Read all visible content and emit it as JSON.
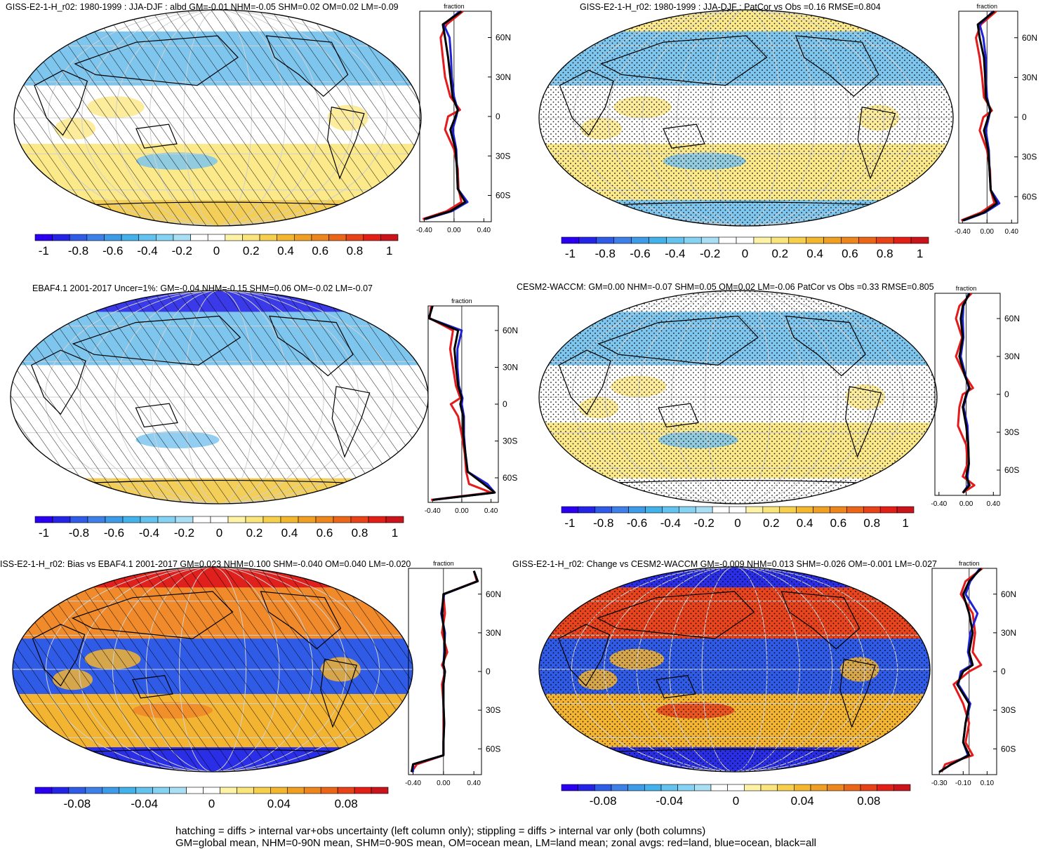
{
  "panels": [
    {
      "id": "p1",
      "title": "GISS-E2-1-H_r02: 1980-1999 : JJA-DJF : albd GM=-0.01 NHM=-0.05 SHM=0.02 OM=0.02 LM=-0.09",
      "map": {
        "overlay": "hatch",
        "colors": {
          "arctic": "#ffffff",
          "north": "#7ec6ee",
          "trop": "#ffffff",
          "south": "#fbe98a",
          "antarctic": "#f3cf5a"
        }
      },
      "zonal_ticks": [
        "60N",
        "30N",
        "0",
        "30S",
        "60S"
      ],
      "zonal_xticks": [
        "-0.40",
        "0.00",
        "0.40"
      ],
      "fraction_label": "fraction",
      "colorbar_labels": [
        "-1",
        "-0.8",
        "-0.6",
        "-0.4",
        "-0.2",
        "0",
        "0.2",
        "0.4",
        "0.6",
        "0.8",
        "1"
      ]
    },
    {
      "id": "p2",
      "title": "GISS-E2-1-H_r02: 1980-1999 : JJA-DJF : PatCor vs Obs =0.16 RMSE=0.804",
      "map": {
        "overlay": "stipple",
        "colors": {
          "arctic": "#fbe98a",
          "north": "#7ec6ee",
          "trop": "#ffffff",
          "south": "#fbe98a",
          "antarctic": "#7ec6ee"
        }
      },
      "zonal_ticks": [
        "60N",
        "30N",
        "0",
        "30S",
        "60S"
      ],
      "zonal_xticks": [
        "-0.40",
        "0.00",
        "0.40"
      ],
      "fraction_label": "fraction",
      "colorbar_labels": [
        "-1",
        "-0.8",
        "-0.6",
        "-0.4",
        "-0.2",
        "0",
        "0.2",
        "0.4",
        "0.6",
        "0.8",
        "1"
      ]
    },
    {
      "id": "p3",
      "title": "EBAF4.1 2001-2017 Uncer=1%: GM=-0.04 NHM=-0.15 SHM=0.06 OM=-0.02 LM=-0.07",
      "map": {
        "overlay": "hatch",
        "colors": {
          "arctic": "#3b3ae8",
          "north": "#7ec6ee",
          "trop": "#ffffff",
          "south": "#ffffff",
          "antarctic": "#f3cf5a"
        }
      },
      "zonal_ticks": [
        "60N",
        "30N",
        "0",
        "30S",
        "60S"
      ],
      "zonal_xticks": [
        "-0.40",
        "0.00",
        "0.40"
      ],
      "fraction_label": "fraction",
      "colorbar_labels": [
        "-1",
        "-0.8",
        "-0.6",
        "-0.4",
        "-0.2",
        "0",
        "0.2",
        "0.4",
        "0.6",
        "0.8",
        "1"
      ]
    },
    {
      "id": "p4",
      "title": "CESM2-WACCM: GM=0.00 NHM=-0.07 SHM=0.05 OM=0.02 LM=-0.06 PatCor vs Obs =0.33 RMSE=0.805",
      "map": {
        "overlay": "stipple",
        "colors": {
          "arctic": "#ffffff",
          "north": "#7ec6ee",
          "trop": "#ffffff",
          "south": "#fbe98a",
          "antarctic": "#ffffff"
        }
      },
      "zonal_ticks": [
        "60N",
        "30N",
        "0",
        "30S",
        "60S"
      ],
      "zonal_xticks": [
        "-0.40",
        "0.00",
        "0.40"
      ],
      "fraction_label": "fraction",
      "colorbar_labels": [
        "-1",
        "-0.8",
        "-0.6",
        "-0.4",
        "-0.2",
        "0",
        "0.2",
        "0.4",
        "0.6",
        "0.8",
        "1"
      ]
    },
    {
      "id": "p5",
      "title": "ISS-E2-1-H_r02: Bias vs EBAF4.1 2001-2017 GM=0.023 NHM=0.100 SHM=-0.040 OM=0.040 LM=-0.020",
      "map": {
        "overlay": "hatch",
        "colors": {
          "arctic": "#e0201c",
          "north": "#f08a2a",
          "trop": "#2f5be6",
          "south": "#f3b431",
          "antarctic": "#2a2ee6"
        }
      },
      "zonal_ticks": [
        "60N",
        "30N",
        "0",
        "30S",
        "60S"
      ],
      "zonal_xticks": [
        "-0.40",
        "0.00",
        "0.40"
      ],
      "fraction_label": "fraction",
      "colorbar_labels": [
        "-0.08",
        "-0.04",
        "0",
        "0.04",
        "0.08"
      ]
    },
    {
      "id": "p6",
      "title": "GISS-E2-1-H_r02: Change vs CESM2-WACCM GM=-0.009 NHM=0.013 SHM=-0.026 OM=-0.001 LM=-0.027",
      "map": {
        "overlay": "stipple",
        "colors": {
          "arctic": "#2a2ee6",
          "north": "#e8441e",
          "trop": "#2f5be6",
          "south": "#f3b431",
          "antarctic": "#2a2ee6"
        }
      },
      "zonal_ticks": [
        "60N",
        "30N",
        "0",
        "30S",
        "60S"
      ],
      "zonal_xticks": [
        "-0.30",
        "-0.10",
        "0.10"
      ],
      "fraction_label": "fraction",
      "colorbar_labels": [
        "-0.08",
        "-0.04",
        "0",
        "0.04",
        "0.08"
      ]
    }
  ],
  "footer": {
    "line1": "hatching = diffs > internal var+obs uncertainty (left column only); stippling = diffs > internal var only (both columns)",
    "line2": "GM=global mean, NHM=0-90N mean, SHM=0-90S mean, OM=ocean mean, LM=land mean; zonal avgs: red=land, blue=ocean, black=all"
  },
  "colors": {
    "colorbar": [
      "#2b00f0",
      "#2424e6",
      "#2f5be6",
      "#3e7fe8",
      "#3d9be8",
      "#44b2ea",
      "#63c3ee",
      "#86d2f2",
      "#a9dff4",
      "#ffffff",
      "#ffffff",
      "#fdf2a6",
      "#fae57d",
      "#f6cf4c",
      "#f2b72e",
      "#efa024",
      "#ed861c",
      "#eb6619",
      "#e84318",
      "#e11f16",
      "#c8141a"
    ],
    "land_line": "#e41a1c",
    "ocean_line": "#1f22d6",
    "all_line": "#000000"
  },
  "chart_data": [
    {
      "type": "heatmap",
      "title": "GISS-E2-1-H_r02: 1980-1999 : JJA-DJF : albd GM=-0.01 NHM=-0.05 SHM=0.02 OM=0.02 LM=-0.09",
      "colorbar_range": [
        -1,
        1
      ],
      "zonal_lat": [
        80,
        70,
        60,
        45,
        30,
        15,
        5,
        0,
        -10,
        -25,
        -40,
        -55,
        -65,
        -72,
        -78
      ],
      "zonal": {
        "all": [
          0.1,
          -0.15,
          -0.12,
          -0.08,
          -0.05,
          -0.02,
          0.05,
          0.02,
          -0.05,
          0.02,
          0.04,
          0.05,
          0.15,
          -0.05,
          -0.4
        ],
        "land": [
          0.12,
          -0.1,
          -0.18,
          -0.15,
          -0.12,
          -0.05,
          0.08,
          -0.08,
          -0.12,
          0.0,
          0.05,
          0.06,
          0.1,
          -0.1,
          -0.42
        ],
        "ocean": [
          0.08,
          -0.14,
          -0.06,
          -0.04,
          -0.03,
          0.0,
          0.05,
          0.03,
          -0.02,
          0.03,
          0.04,
          0.05,
          0.18,
          -0.03,
          -0.38
        ]
      }
    },
    {
      "type": "heatmap",
      "title": "GISS-E2-1-H_r02: 1980-1999 : JJA-DJF : PatCor vs Obs =0.16 RMSE=0.804",
      "colorbar_range": [
        -1,
        1
      ],
      "zonal_lat": [
        80,
        70,
        60,
        45,
        30,
        15,
        5,
        0,
        -10,
        -25,
        -40,
        -55,
        -65,
        -72,
        -78
      ],
      "zonal": {
        "all": [
          0.12,
          -0.15,
          -0.12,
          -0.05,
          -0.03,
          -0.02,
          0.06,
          0.02,
          -0.05,
          0.02,
          0.04,
          0.06,
          0.16,
          -0.05,
          -0.4
        ],
        "land": [
          0.15,
          -0.1,
          -0.18,
          -0.12,
          -0.08,
          -0.05,
          0.08,
          -0.06,
          -0.12,
          0.0,
          0.05,
          0.06,
          0.12,
          -0.1,
          -0.42
        ],
        "ocean": [
          0.1,
          -0.12,
          -0.06,
          -0.02,
          -0.02,
          0.0,
          0.05,
          0.03,
          -0.02,
          0.03,
          0.04,
          0.06,
          0.2,
          -0.03,
          -0.38
        ]
      }
    },
    {
      "type": "heatmap",
      "title": "EBAF4.1 2001-2017 Uncer=1%: GM=-0.04 NHM=-0.15 SHM=0.06 OM=-0.02 LM=-0.07",
      "colorbar_range": [
        -1,
        1
      ],
      "zonal_lat": [
        80,
        70,
        60,
        45,
        30,
        15,
        5,
        0,
        -10,
        -25,
        -40,
        -55,
        -65,
        -72,
        -78
      ],
      "zonal": {
        "all": [
          -0.4,
          -0.45,
          -0.05,
          -0.1,
          -0.08,
          -0.05,
          0.0,
          -0.02,
          0.02,
          0.02,
          0.05,
          0.08,
          0.3,
          0.45,
          -0.4
        ],
        "land": [
          -0.42,
          -0.44,
          -0.12,
          -0.16,
          -0.12,
          -0.08,
          -0.02,
          -0.15,
          -0.05,
          0.0,
          0.04,
          0.06,
          0.1,
          0.4,
          -0.42
        ],
        "ocean": [
          -0.4,
          -0.45,
          0.0,
          -0.06,
          -0.06,
          -0.04,
          0.01,
          0.0,
          0.03,
          0.03,
          0.05,
          0.08,
          0.35,
          0.45,
          -0.4
        ]
      }
    },
    {
      "type": "heatmap",
      "title": "CESM2-WACCM: GM=0.00 NHM=-0.07 SHM=0.05 OM=0.02 LM=-0.06 PatCor vs Obs =0.33 RMSE=0.805",
      "colorbar_range": [
        -1,
        1
      ],
      "zonal_lat": [
        80,
        70,
        60,
        45,
        30,
        15,
        5,
        0,
        -10,
        -25,
        -40,
        -55,
        -65,
        -72,
        -78
      ],
      "zonal": {
        "all": [
          0.05,
          -0.05,
          -0.08,
          -0.05,
          -0.1,
          -0.02,
          0.05,
          0.0,
          -0.05,
          0.0,
          0.03,
          0.04,
          0.0,
          0.05,
          -0.05
        ],
        "land": [
          0.08,
          -0.1,
          -0.15,
          -0.06,
          -0.15,
          -0.02,
          0.1,
          -0.05,
          -0.1,
          -0.12,
          0.0,
          0.02,
          -0.05,
          0.12,
          -0.05
        ],
        "ocean": [
          0.04,
          -0.04,
          -0.05,
          -0.04,
          -0.08,
          -0.01,
          0.04,
          0.01,
          -0.04,
          0.02,
          0.03,
          0.04,
          0.02,
          0.03,
          -0.05
        ]
      }
    },
    {
      "type": "heatmap",
      "title": "ISS-E2-1-H_r02: Bias vs EBAF4.1 2001-2017 GM=0.023 NHM=0.100 SHM=-0.040 OM=0.040 LM=-0.020",
      "colorbar_range": [
        -0.1,
        0.1
      ],
      "zonal_lat": [
        78,
        70,
        60,
        45,
        30,
        15,
        5,
        0,
        -10,
        -25,
        -40,
        -55,
        -65,
        -72,
        -78
      ],
      "zonal": {
        "all": [
          0.4,
          0.45,
          0.0,
          -0.02,
          0.01,
          0.02,
          0.0,
          0.02,
          0.0,
          0.0,
          0.01,
          0.0,
          0.0,
          -0.4,
          -0.42
        ],
        "land": [
          0.4,
          0.44,
          0.0,
          0.02,
          -0.02,
          0.05,
          -0.02,
          0.02,
          -0.02,
          0.0,
          0.0,
          0.0,
          0.0,
          -0.35,
          -0.42
        ],
        "ocean": [
          0.4,
          0.45,
          0.01,
          -0.03,
          0.02,
          0.01,
          0.0,
          0.02,
          0.0,
          0.0,
          0.01,
          0.0,
          0.0,
          -0.4,
          -0.4
        ]
      }
    },
    {
      "type": "heatmap",
      "title": "GISS-E2-1-H_r02: Change vs CESM2-WACCM GM=-0.009 NHM=0.013 SHM=-0.026 OM=-0.001 LM=-0.027",
      "colorbar_range": [
        -0.1,
        0.1
      ],
      "zonal_lat": [
        80,
        70,
        60,
        45,
        30,
        15,
        5,
        0,
        -10,
        -25,
        -40,
        -55,
        -65,
        -72,
        -78
      ],
      "zonal": {
        "all": [
          0.05,
          -0.05,
          -0.1,
          -0.05,
          -0.02,
          -0.05,
          -0.02,
          -0.1,
          -0.15,
          -0.05,
          -0.08,
          -0.1,
          -0.05,
          -0.2,
          -0.3
        ],
        "land": [
          0.06,
          -0.08,
          -0.12,
          -0.02,
          0.0,
          -0.02,
          0.05,
          -0.05,
          -0.18,
          -0.1,
          -0.05,
          -0.08,
          -0.02,
          -0.25,
          -0.28
        ],
        "ocean": [
          0.04,
          -0.04,
          -0.08,
          0.02,
          -0.04,
          -0.06,
          -0.03,
          -0.12,
          -0.14,
          -0.04,
          -0.08,
          -0.1,
          -0.06,
          -0.2,
          -0.3
        ]
      }
    }
  ]
}
